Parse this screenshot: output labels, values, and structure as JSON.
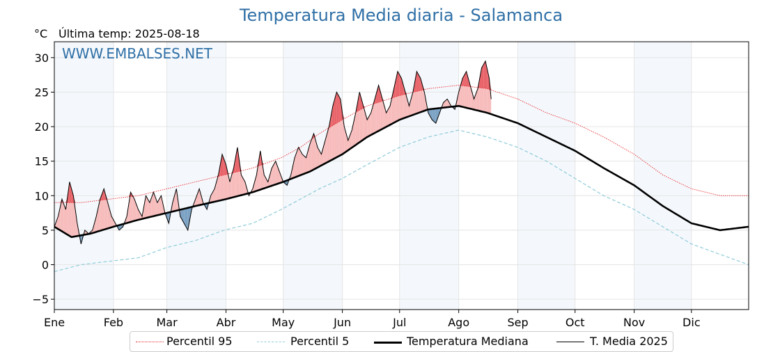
{
  "chart_data": {
    "type": "line",
    "title": "Temperatura Media diaria - Salamanca",
    "unit_label": "°C",
    "last_update": "Última temp: 2025-08-18",
    "watermark": "WWW.EMBALSES.NET",
    "ylim": [
      -6.5,
      32.3
    ],
    "yticks": [
      -5,
      0,
      5,
      10,
      15,
      20,
      25,
      30
    ],
    "month_labels": [
      "Ene",
      "Feb",
      "Mar",
      "Abr",
      "May",
      "Jun",
      "Jul",
      "Ago",
      "Sep",
      "Oct",
      "Nov",
      "Dic"
    ],
    "month_start_days": [
      1,
      32,
      60,
      91,
      121,
      152,
      182,
      213,
      244,
      274,
      305,
      335
    ],
    "grid": true,
    "legend_position": "bottom",
    "series": [
      {
        "name": "Percentil 95",
        "color": "#e8262b",
        "style": "dotted",
        "days": [
          1,
          15,
          30,
          45,
          60,
          75,
          90,
          105,
          120,
          130,
          140,
          152,
          165,
          182,
          197,
          213,
          228,
          244,
          259,
          274,
          289,
          305,
          320,
          335,
          350,
          365
        ],
        "values": [
          9,
          9,
          9.5,
          10,
          11,
          12,
          13,
          14,
          15.5,
          17,
          19,
          21,
          23,
          24.5,
          25.5,
          26,
          25.5,
          24,
          22,
          20.5,
          18.5,
          16,
          13,
          11,
          10,
          10
        ]
      },
      {
        "name": "Percentil 5",
        "color": "#8ecbd8",
        "style": "dashed",
        "days": [
          1,
          15,
          30,
          45,
          60,
          75,
          90,
          105,
          120,
          130,
          140,
          152,
          165,
          182,
          197,
          213,
          228,
          244,
          259,
          274,
          289,
          305,
          320,
          335,
          350,
          365
        ],
        "values": [
          -1,
          0,
          0.5,
          1,
          2.5,
          3.5,
          5,
          6,
          8,
          9.5,
          11,
          12.5,
          14.5,
          17,
          18.5,
          19.5,
          18.5,
          17,
          15,
          12.5,
          10,
          8,
          5.5,
          3,
          1.5,
          0
        ]
      },
      {
        "name": "Temperatura Mediana",
        "color": "#000000",
        "style": "solid-thick",
        "days": [
          1,
          10,
          20,
          32,
          45,
          60,
          75,
          91,
          105,
          121,
          135,
          152,
          165,
          182,
          197,
          213,
          228,
          244,
          259,
          274,
          289,
          305,
          320,
          335,
          350,
          365
        ],
        "values": [
          5.5,
          4,
          4.5,
          5.5,
          6.5,
          7.5,
          8.5,
          9.5,
          10.5,
          12,
          13.5,
          16,
          18.5,
          21,
          22.5,
          23,
          22,
          20.5,
          18.5,
          16.5,
          14,
          11.5,
          8.5,
          6,
          5,
          5.5
        ]
      },
      {
        "name": "T. Media 2025",
        "color": "#000000",
        "style": "solid",
        "days": [
          1,
          3,
          5,
          7,
          9,
          11,
          13,
          15,
          17,
          19,
          21,
          23,
          25,
          27,
          29,
          31,
          33,
          35,
          37,
          39,
          41,
          43,
          45,
          47,
          49,
          51,
          53,
          55,
          57,
          59,
          61,
          63,
          65,
          67,
          69,
          71,
          73,
          75,
          77,
          79,
          81,
          83,
          85,
          87,
          89,
          91,
          93,
          95,
          97,
          99,
          101,
          103,
          105,
          107,
          109,
          111,
          113,
          115,
          117,
          119,
          121,
          123,
          125,
          127,
          129,
          131,
          133,
          135,
          137,
          139,
          141,
          143,
          145,
          147,
          149,
          151,
          153,
          155,
          157,
          159,
          161,
          163,
          165,
          167,
          169,
          171,
          173,
          175,
          177,
          179,
          181,
          183,
          185,
          187,
          189,
          191,
          193,
          195,
          197,
          199,
          201,
          203,
          205,
          207,
          209,
          211,
          213,
          215,
          217,
          219,
          221,
          223,
          225,
          227,
          229,
          230
        ],
        "values": [
          5.5,
          7,
          9.5,
          8,
          12,
          10,
          6,
          3,
          5,
          4.5,
          5,
          7,
          9.5,
          11,
          9,
          7,
          6,
          5,
          5.5,
          7,
          10.5,
          9.5,
          8,
          7,
          10,
          9,
          10.5,
          9,
          10,
          7.5,
          6,
          9,
          11,
          7,
          6,
          5,
          8,
          9.5,
          11,
          9,
          8,
          10,
          11,
          13,
          16,
          14.5,
          12,
          14,
          17,
          13,
          12,
          10,
          11,
          13,
          16.5,
          13,
          12,
          14,
          15,
          13.5,
          12,
          11.5,
          13,
          15.5,
          17,
          16,
          15.5,
          17.5,
          19,
          17,
          16,
          18,
          20,
          23,
          25,
          24,
          20,
          18,
          19.5,
          22,
          25,
          23,
          21,
          22,
          24,
          26,
          24,
          22,
          23,
          25.5,
          28,
          27,
          25,
          23,
          25,
          28,
          27,
          25,
          22,
          21,
          20.5,
          22,
          23.5,
          24,
          23,
          22.5,
          25,
          27,
          28,
          26,
          24,
          25.5,
          28.5,
          29.5,
          27,
          24
        ]
      }
    ]
  }
}
